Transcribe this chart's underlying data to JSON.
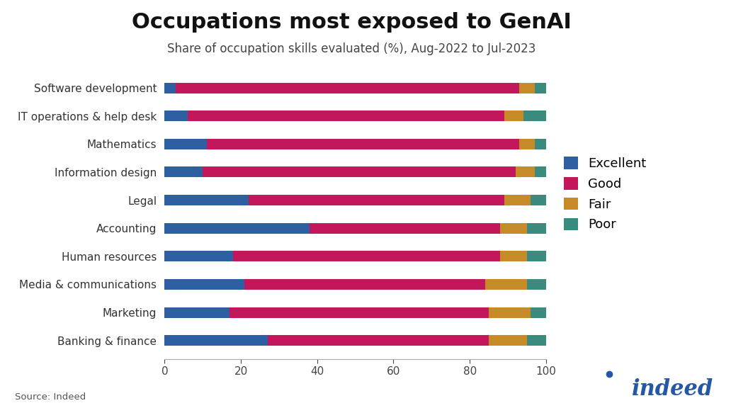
{
  "title": "Occupations most exposed to GenAI",
  "subtitle": "Share of occupation skills evaluated (%), Aug-2022 to Jul-2023",
  "source": "Source: Indeed",
  "categories": [
    "Software development",
    "IT operations & help desk",
    "Mathematics",
    "Information design",
    "Legal",
    "Accounting",
    "Human resources",
    "Media & communications",
    "Marketing",
    "Banking & finance"
  ],
  "excellent": [
    3,
    6,
    11,
    10,
    22,
    38,
    18,
    21,
    17,
    27
  ],
  "good": [
    90,
    83,
    82,
    82,
    67,
    50,
    70,
    63,
    68,
    58
  ],
  "fair": [
    4,
    5,
    4,
    5,
    7,
    7,
    7,
    11,
    11,
    10
  ],
  "poor": [
    3,
    6,
    3,
    3,
    4,
    5,
    5,
    5,
    4,
    5
  ],
  "colors": {
    "excellent": "#2E5FA3",
    "good": "#C2185B",
    "fair": "#C68A28",
    "poor": "#3A8A7E"
  },
  "xlim": [
    0,
    100
  ],
  "background_color": "#FFFFFF",
  "title_fontsize": 22,
  "subtitle_fontsize": 12,
  "label_fontsize": 11,
  "legend_fontsize": 13,
  "source_fontsize": 9.5
}
